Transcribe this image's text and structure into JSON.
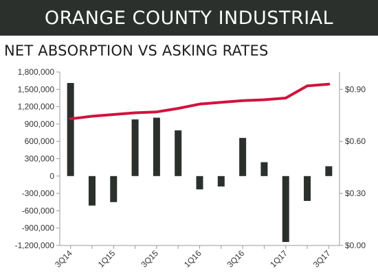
{
  "header": {
    "title": "ORANGE COUNTY INDUSTRIAL"
  },
  "chart_data": {
    "type": "bar+line",
    "title": "NET ABSORPTION VS ASKING RATES",
    "categories": [
      "3Q14",
      "4Q14",
      "1Q15",
      "2Q15",
      "3Q15",
      "4Q15",
      "1Q16",
      "2Q16",
      "3Q16",
      "4Q16",
      "1Q17",
      "2Q17",
      "3Q17"
    ],
    "x_tick_labels": [
      "3Q14",
      "1Q15",
      "3Q15",
      "1Q16",
      "3Q16",
      "1Q17",
      "3Q17"
    ],
    "series": [
      {
        "kind": "bar",
        "axis": "left",
        "values": [
          1610000,
          -510000,
          -450000,
          980000,
          1010000,
          790000,
          -230000,
          -180000,
          660000,
          240000,
          -1140000,
          -430000,
          170000
        ]
      },
      {
        "kind": "line",
        "axis": "right",
        "values": [
          0.73,
          0.745,
          0.755,
          0.765,
          0.77,
          0.79,
          0.815,
          0.825,
          0.835,
          0.84,
          0.85,
          0.92,
          0.93
        ]
      }
    ],
    "y_left": {
      "min": -1200000,
      "max": 1800000,
      "ticks": [
        -1200000,
        -900000,
        -600000,
        -300000,
        0,
        300000,
        600000,
        900000,
        1200000,
        1500000,
        1800000
      ],
      "tick_labels": [
        "-1,200,000",
        "-900,000",
        "-600,000",
        "-300,000",
        "0",
        "300,000",
        "600,000",
        "900,000",
        "1,200,000",
        "1,500,000",
        "1,800,000"
      ]
    },
    "y_right": {
      "min": 0,
      "max": 1.0,
      "ticks": [
        0,
        0.3,
        0.6,
        0.9
      ],
      "tick_labels": [
        "$0.00",
        "$0.30",
        "$0.60",
        "$0.90"
      ]
    },
    "grid": false,
    "colors": {
      "bar": "#2b302d",
      "line": "#d2123e",
      "axis": "#9a9a9a",
      "banner": "#2b302d"
    }
  }
}
